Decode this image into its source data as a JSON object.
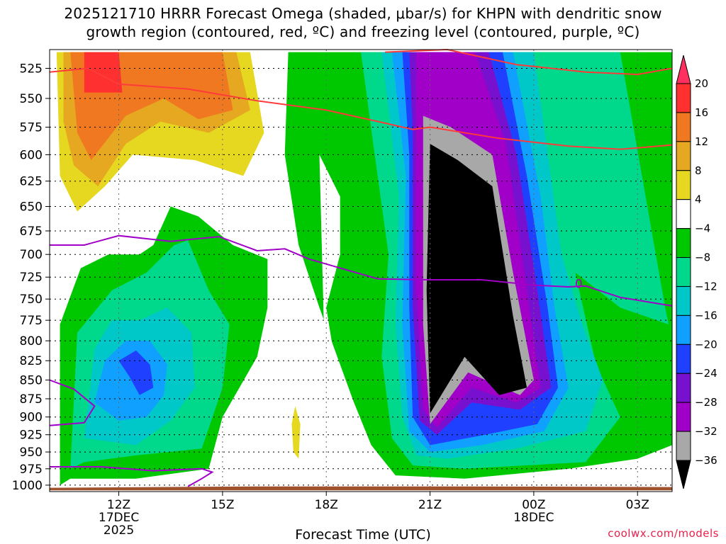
{
  "title": {
    "line1": "2025121710 HRRR Forecast Omega (shaded, μbar/s) for KHPN with dendritic snow",
    "line2": "growth region (contoured, red, ºC) and freezing level (contoured, purple, ºC)"
  },
  "watermark": "coolwx.com/models",
  "chart_data": {
    "type": "heatmap",
    "title": "2025121710 HRRR Forecast Omega (shaded, μbar/s) for KHPN with dendritic snow growth region (contoured, red, ºC) and freezing level (contoured, purple, ºC)",
    "xlabel": "Forecast Time (UTC)",
    "ylabel": "",
    "x_ticks": [
      {
        "label": "12Z",
        "sub": [
          "17DEC",
          "2025"
        ],
        "hour": 12
      },
      {
        "label": "15Z",
        "sub": [],
        "hour": 15
      },
      {
        "label": "18Z",
        "sub": [],
        "hour": 18
      },
      {
        "label": "21Z",
        "sub": [],
        "hour": 21
      },
      {
        "label": "00Z",
        "sub": [
          "18DEC"
        ],
        "hour": 24
      },
      {
        "label": "03Z",
        "sub": [],
        "hour": 27
      }
    ],
    "xlim_hours": [
      10,
      28
    ],
    "y_ticks": [
      525,
      550,
      575,
      600,
      625,
      650,
      675,
      700,
      725,
      750,
      775,
      800,
      825,
      850,
      875,
      900,
      925,
      950,
      975,
      1000
    ],
    "ylim_hPa": [
      1010,
      510
    ],
    "colorbar": {
      "labels": [
        "20",
        "16",
        "12",
        "8",
        "4",
        "−4",
        "−8",
        "−12",
        "−16",
        "−20",
        "−24",
        "−28",
        "−32",
        "−36"
      ],
      "colors": [
        "#ff3060",
        "#ff3030",
        "#f07820",
        "#e6a820",
        "#e6d820",
        "#ffffff",
        "#00c800",
        "#00d88c",
        "#00c8c8",
        "#10a0ff",
        "#2040ff",
        "#7810d0",
        "#a000c8",
        "#a8a8a8",
        "#000000"
      ]
    },
    "freezing_level_label": "0",
    "ground_color": "#a0522d",
    "dgz_line_color": "#ff3a3a",
    "freezing_line_color": "#a000c8"
  }
}
